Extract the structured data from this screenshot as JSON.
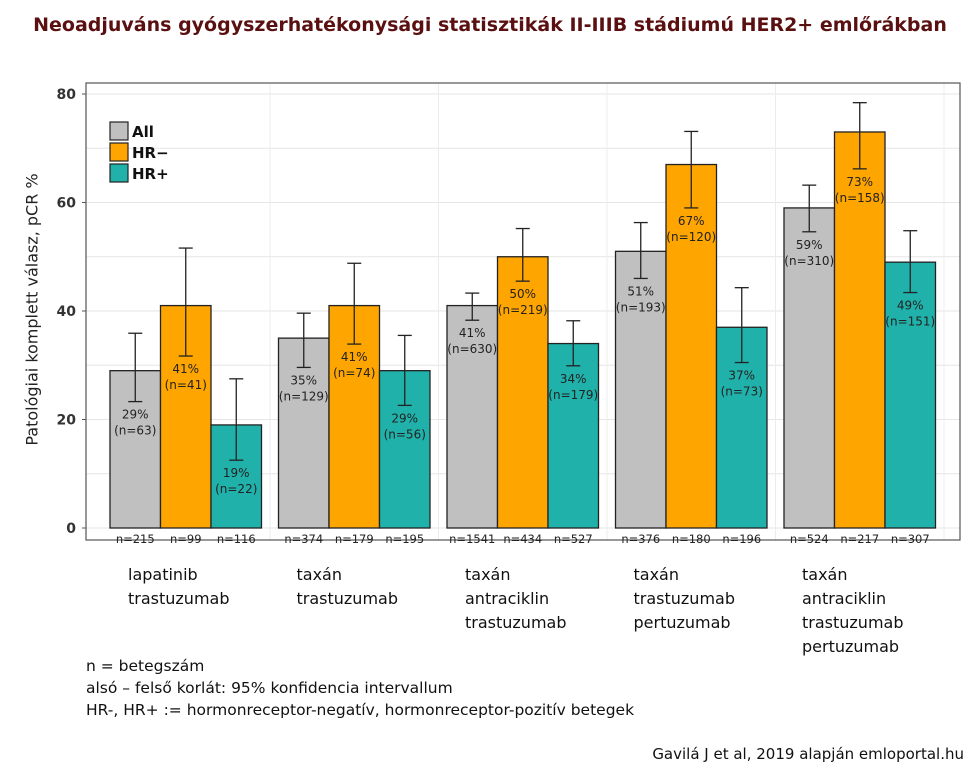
{
  "chart_data": {
    "type": "bar",
    "title": "Neoadjuváns gyógyszerhatékonysági statisztikák II-IIIB stádiumú HER2+ emlőrákban",
    "ylabel": "Patológiai komplett válasz, pCR %",
    "xlabel": "",
    "ylim": [
      0,
      82
    ],
    "yticks": [
      0,
      20,
      40,
      60,
      80
    ],
    "grid": true,
    "legend_position": "top-left",
    "categories": [
      [
        "lapatinib",
        "trastuzumab"
      ],
      [
        "taxán",
        "trastuzumab"
      ],
      [
        "taxán",
        "antraciklin",
        "trastuzumab"
      ],
      [
        "taxán",
        "trastuzumab",
        "pertuzumab"
      ],
      [
        "taxán",
        "antraciklin",
        "trastuzumab",
        "pertuzumab"
      ]
    ],
    "series": [
      {
        "name": "All",
        "color": "#c0c0c0",
        "values": [
          29,
          35,
          41,
          51,
          59
        ],
        "labels": [
          "29%",
          "35%",
          "41%",
          "51%",
          "59%"
        ],
        "responders": [
          "(n=63)",
          "(n=129)",
          "(n=630)",
          "(n=193)",
          "(n=310)"
        ],
        "totals": [
          "n=215",
          "n=374",
          "n=1541",
          "n=376",
          "n=524"
        ],
        "ci_low": [
          23.3,
          29.6,
          38.3,
          46.0,
          54.6
        ],
        "ci_high": [
          35.9,
          39.6,
          43.3,
          56.3,
          63.2
        ]
      },
      {
        "name": "HR−",
        "color": "#ffa500",
        "values": [
          41,
          41,
          50,
          67,
          73
        ],
        "labels": [
          "41%",
          "41%",
          "50%",
          "67%",
          "73%"
        ],
        "responders": [
          "(n=41)",
          "(n=74)",
          "(n=219)",
          "(n=120)",
          "(n=158)"
        ],
        "totals": [
          "n=99",
          "n=179",
          "n=434",
          "n=180",
          "n=217"
        ],
        "ci_low": [
          31.7,
          33.9,
          45.5,
          59.0,
          66.2
        ],
        "ci_high": [
          51.6,
          48.8,
          55.2,
          73.1,
          78.4
        ]
      },
      {
        "name": "HR+",
        "color": "#20b2aa",
        "values": [
          19,
          29,
          34,
          37,
          49
        ],
        "labels": [
          "19%",
          "29%",
          "34%",
          "37%",
          "49%"
        ],
        "responders": [
          "(n=22)",
          "(n=56)",
          "(n=179)",
          "(n=73)",
          "(n=151)"
        ],
        "totals": [
          "n=116",
          "n=195",
          "n=527",
          "n=196",
          "n=307"
        ],
        "ci_low": [
          12.5,
          22.6,
          29.9,
          30.5,
          43.4
        ],
        "ci_high": [
          27.5,
          35.5,
          38.2,
          44.3,
          54.8
        ]
      }
    ]
  },
  "notes": [
    "n = betegszám",
    "alsó – felső korlát: 95% konfidencia intervallum",
    "HR-, HR+ := hormonreceptor-negatív, hormonreceptor-pozitív betegek"
  ],
  "source": "Gavilá J et al, 2019 alapján emloportal.hu"
}
